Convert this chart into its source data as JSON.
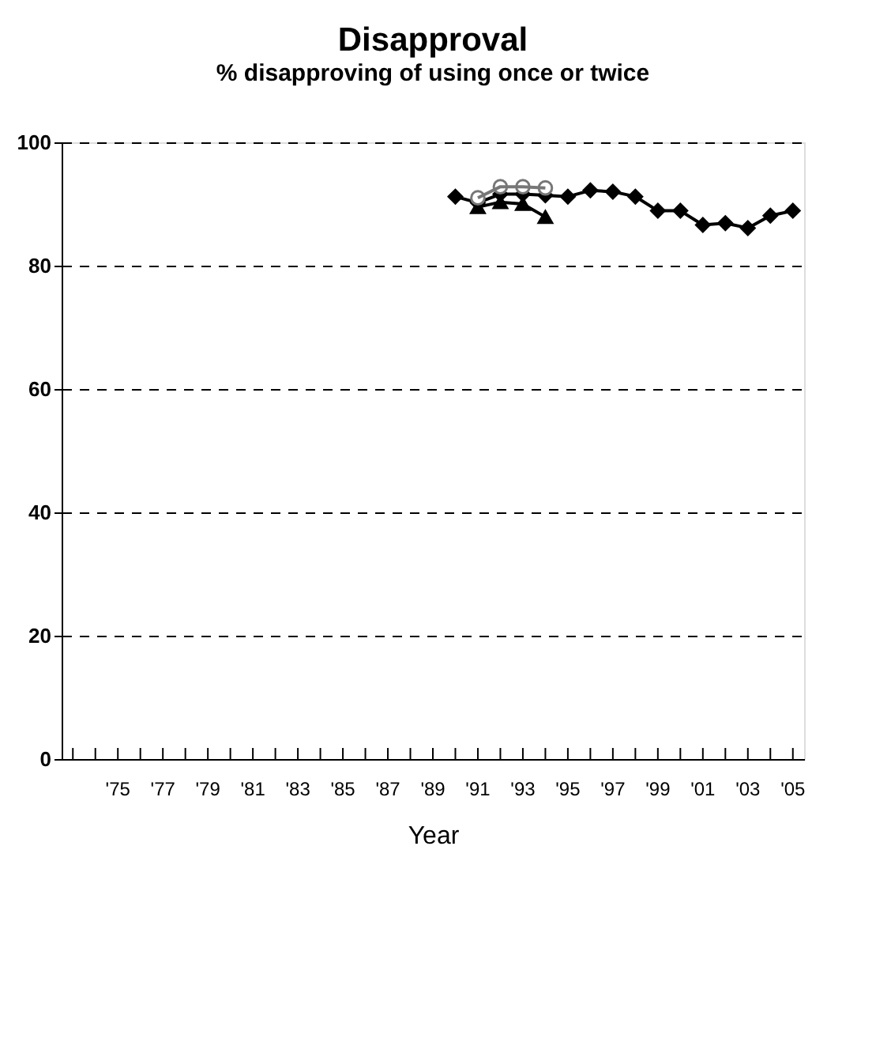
{
  "chart_data": {
    "type": "line",
    "title": "Disapproval",
    "subtitle": "% disapproving of using once or twice",
    "xlabel": "Year",
    "xlim": [
      1972.5,
      2005.5
    ],
    "xticks": [
      {
        "value": 1973,
        "label": null
      },
      {
        "value": 1974,
        "label": null
      },
      {
        "value": 1975,
        "label": "'75"
      },
      {
        "value": 1976,
        "label": null
      },
      {
        "value": 1977,
        "label": "'77"
      },
      {
        "value": 1978,
        "label": null
      },
      {
        "value": 1979,
        "label": "'79"
      },
      {
        "value": 1980,
        "label": null
      },
      {
        "value": 1981,
        "label": "'81"
      },
      {
        "value": 1982,
        "label": null
      },
      {
        "value": 1983,
        "label": "'83"
      },
      {
        "value": 1984,
        "label": null
      },
      {
        "value": 1985,
        "label": "'85"
      },
      {
        "value": 1986,
        "label": null
      },
      {
        "value": 1987,
        "label": "'87"
      },
      {
        "value": 1988,
        "label": null
      },
      {
        "value": 1989,
        "label": "'89"
      },
      {
        "value": 1990,
        "label": null
      },
      {
        "value": 1991,
        "label": "'91"
      },
      {
        "value": 1992,
        "label": null
      },
      {
        "value": 1993,
        "label": "'93"
      },
      {
        "value": 1994,
        "label": null
      },
      {
        "value": 1995,
        "label": "'95"
      },
      {
        "value": 1996,
        "label": null
      },
      {
        "value": 1997,
        "label": "'97"
      },
      {
        "value": 1998,
        "label": null
      },
      {
        "value": 1999,
        "label": "'99"
      },
      {
        "value": 2000,
        "label": null
      },
      {
        "value": 2001,
        "label": "'01"
      },
      {
        "value": 2002,
        "label": null
      },
      {
        "value": 2003,
        "label": "'03"
      },
      {
        "value": 2004,
        "label": null
      },
      {
        "value": 2005,
        "label": "'05"
      }
    ],
    "ylim": [
      0,
      100
    ],
    "yticks": [
      0,
      20,
      40,
      60,
      80,
      100
    ],
    "grid": "y",
    "series": [
      {
        "color": "#000000",
        "marker": "diamond",
        "x": [
          1990,
          1991,
          1992,
          1993,
          1994,
          1995,
          1996,
          1997,
          1998,
          1999,
          2000,
          2001,
          2002,
          2003,
          2004,
          2005
        ],
        "values": [
          91.2,
          90.2,
          91.6,
          91.6,
          91.4,
          91.2,
          92.2,
          92.0,
          91.2,
          88.9,
          88.9,
          86.6,
          86.9,
          86.1,
          88.1,
          88.9
        ]
      },
      {
        "color": "#777777",
        "marker": "circle",
        "x": [
          1991,
          1992,
          1993,
          1994
        ],
        "values": [
          91.0,
          92.8,
          92.8,
          92.6
        ]
      },
      {
        "color": "#000000",
        "marker": "triangle",
        "x": [
          1991,
          1992,
          1993,
          1994
        ],
        "values": [
          89.5,
          90.3,
          90.0,
          87.9
        ]
      }
    ]
  }
}
